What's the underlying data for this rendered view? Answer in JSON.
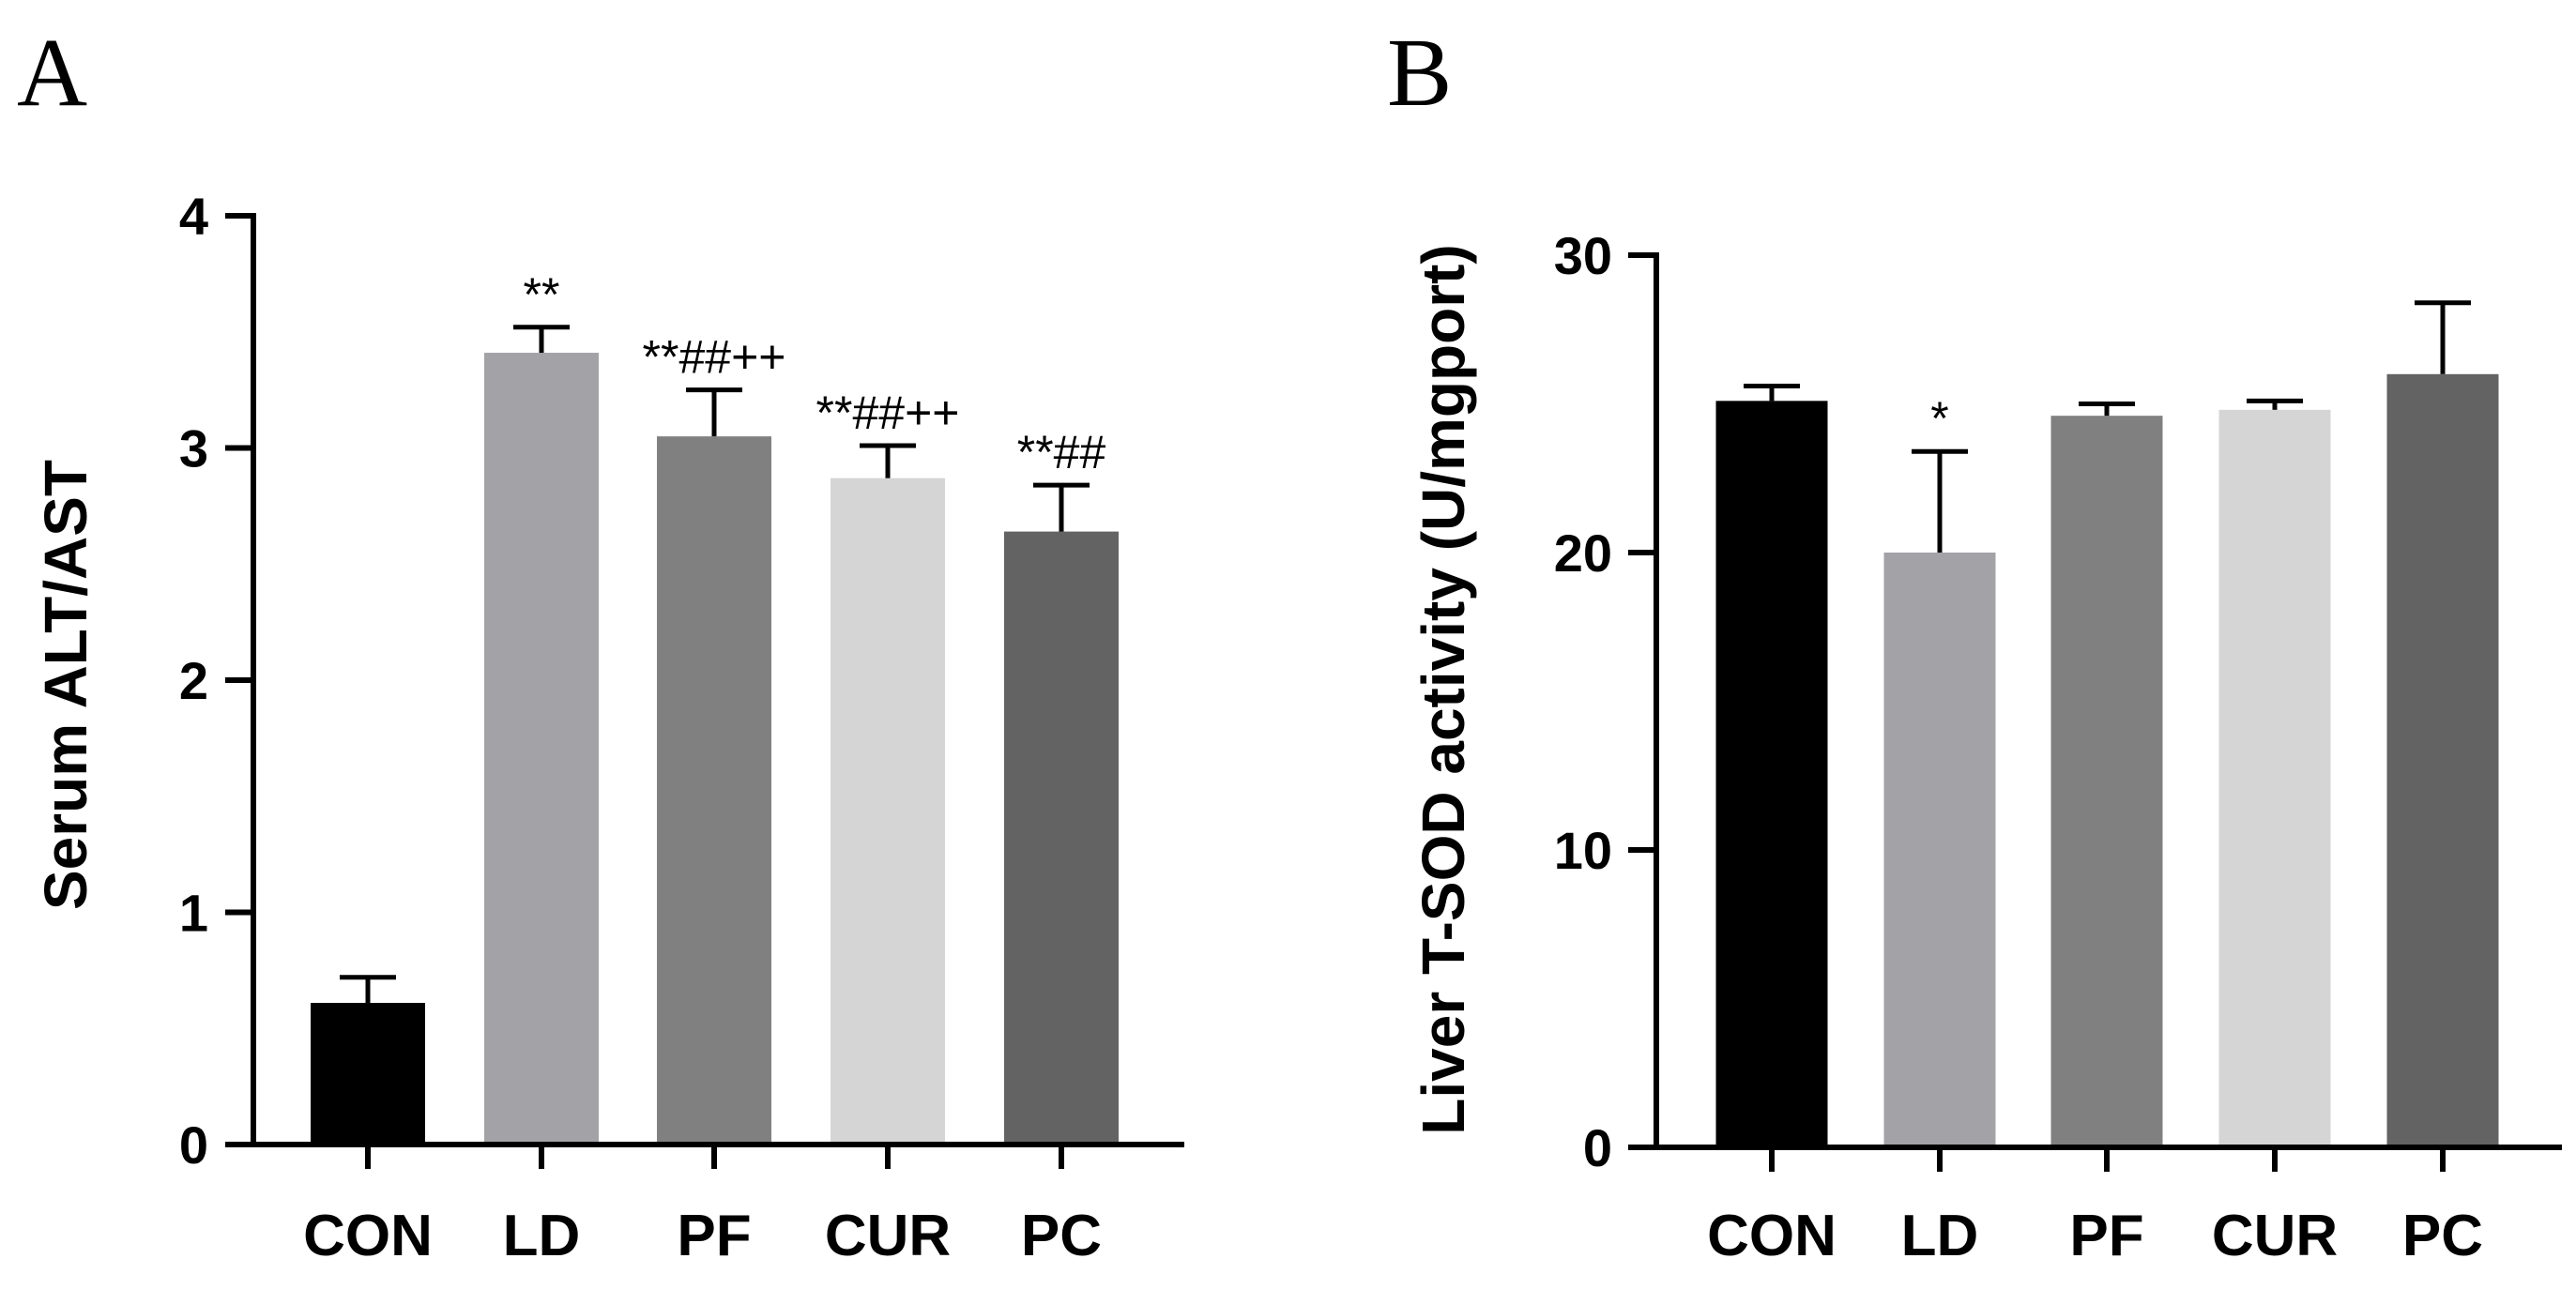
{
  "chart_data": [
    {
      "panel": "A",
      "type": "bar",
      "categories": [
        "CON",
        "LD",
        "PF",
        "CUR",
        "PC"
      ],
      "values": [
        0.61,
        3.41,
        3.05,
        2.87,
        2.64
      ],
      "errors": [
        0.11,
        0.11,
        0.2,
        0.14,
        0.2
      ],
      "colors": [
        "#000000",
        "#a3a2a7",
        "#808080",
        "#d5d5d5",
        "#636363"
      ],
      "annotations": [
        "",
        "**",
        "**##++",
        "**##++",
        "**##"
      ],
      "ylabel": "Serum ALT/AST",
      "xlabel": "",
      "ylim": [
        0,
        4
      ],
      "yticks": [
        "0",
        "1",
        "2",
        "3",
        "4"
      ]
    },
    {
      "panel": "B",
      "type": "bar",
      "categories": [
        "CON",
        "LD",
        "PF",
        "CUR",
        "PC"
      ],
      "values": [
        25.1,
        20.0,
        24.6,
        24.8,
        26.0
      ],
      "errors": [
        0.5,
        3.4,
        0.4,
        0.3,
        2.4
      ],
      "colors": [
        "#000000",
        "#a3a2a7",
        "#808080",
        "#d5d5d5",
        "#636363"
      ],
      "annotations": [
        "",
        "*",
        "",
        "",
        ""
      ],
      "ylabel": "Liver T-SOD activity (U/mgport)",
      "xlabel": "",
      "ylim": [
        0,
        30
      ],
      "yticks": [
        "0",
        "10",
        "20",
        "30"
      ]
    }
  ]
}
